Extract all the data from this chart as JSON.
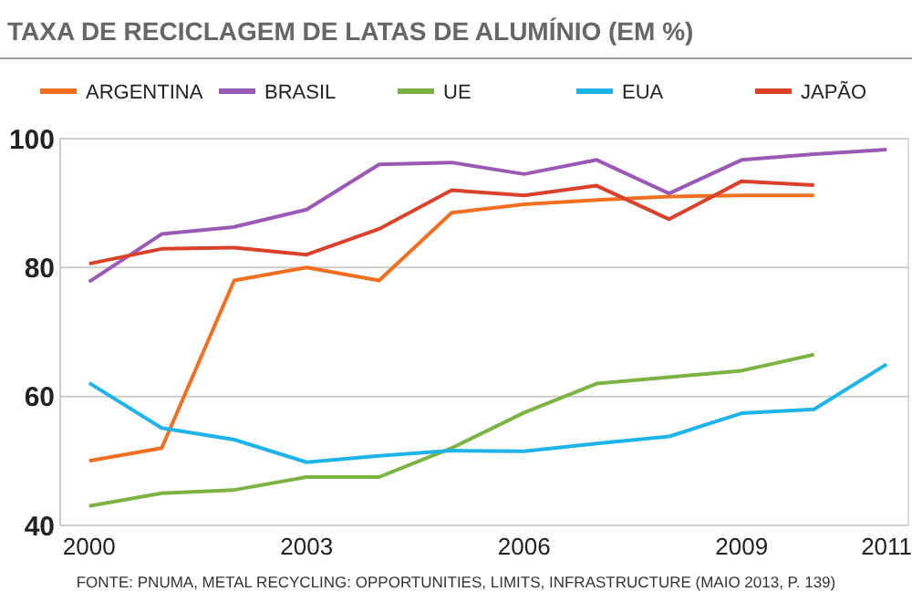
{
  "chart_data": {
    "type": "line",
    "title": "TAXA DE RECICLAGEM DE LATAS DE ALUMÍNIO (EM %)",
    "x": [
      2000,
      2001,
      2002,
      2003,
      2004,
      2005,
      2006,
      2007,
      2008,
      2009,
      2010,
      2011
    ],
    "series": [
      {
        "name": "ARGENTINA",
        "color": "#f26f21",
        "values": [
          50,
          52,
          78,
          80,
          78,
          88.5,
          89.8,
          90.5,
          91,
          91.2,
          91.2,
          null
        ]
      },
      {
        "name": "BRASIL",
        "color": "#9b59b6",
        "values": [
          77.8,
          85.2,
          86.3,
          89,
          96,
          96.3,
          94.5,
          96.7,
          91.5,
          96.7,
          97.6,
          98.3
        ]
      },
      {
        "name": "UE",
        "color": "#7cb342",
        "values": [
          43,
          45,
          45.5,
          47.5,
          47.5,
          52,
          57.5,
          62,
          63,
          64,
          66.5,
          null
        ]
      },
      {
        "name": "EUA",
        "color": "#1eb4ea",
        "values": [
          62.1,
          55.1,
          53.3,
          49.8,
          50.8,
          51.6,
          51.5,
          52.7,
          53.8,
          57.4,
          58,
          65
        ]
      },
      {
        "name": "JAPÃO",
        "color": "#d9412b",
        "values": [
          80.6,
          82.9,
          83.1,
          82,
          86,
          92,
          91.2,
          92.7,
          87.5,
          93.4,
          92.8,
          null
        ]
      }
    ],
    "xlim": [
      1999.6,
      2011.3
    ],
    "xticks": [
      2000,
      2003,
      2006,
      2009,
      2011
    ],
    "ylim": [
      40,
      100
    ],
    "yticks": [
      40,
      60,
      80,
      100
    ],
    "grid": "y",
    "legend": "top",
    "marker": "none",
    "line_style": "solid",
    "annotations": [
      "FONTE: PNUMA, METAL RECYCLING: OPPORTUNITIES, LIMITS, INFRASTRUCTURE (MAIO 2013, P. 139)"
    ]
  }
}
